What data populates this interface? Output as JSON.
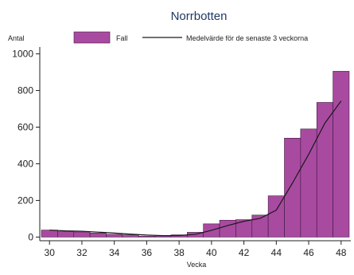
{
  "chart_data": {
    "type": "bar",
    "title": "Norrbotten",
    "ylabel": "Antal",
    "xlabel": "Vecka",
    "legend": {
      "placement": "top",
      "items": [
        {
          "name": "Fall",
          "kind": "bar"
        },
        {
          "name": "Medelvärde för de senaste 3 veckorna",
          "kind": "line"
        }
      ]
    },
    "x": [
      30,
      31,
      32,
      33,
      34,
      35,
      36,
      37,
      38,
      39,
      40,
      41,
      42,
      43,
      44,
      45,
      46,
      47,
      48
    ],
    "series": [
      {
        "name": "Fall",
        "type": "bar",
        "values": [
          38,
          30,
          28,
          22,
          15,
          12,
          5,
          6,
          12,
          26,
          72,
          92,
          95,
          120,
          225,
          540,
          590,
          735,
          905
        ]
      },
      {
        "name": "Medelvärde för de senaste 3 veckorna",
        "type": "line",
        "values": [
          38,
          34,
          32,
          27,
          22,
          16,
          11,
          8,
          8,
          15,
          37,
          63,
          86,
          102,
          147,
          295,
          452,
          622,
          743
        ]
      }
    ],
    "xticks": [
      30,
      32,
      34,
      36,
      38,
      40,
      42,
      44,
      46,
      48
    ],
    "yticks": [
      0,
      200,
      400,
      600,
      800,
      1000
    ],
    "xlim": [
      29.4,
      48.6
    ],
    "ylim": [
      -20,
      1020
    ],
    "grid": false,
    "colors": {
      "bar_fill": "#a94aa1",
      "bar_stroke": "#3b1b3a",
      "line": "#1a1a1a",
      "title": "#1f3864"
    }
  }
}
